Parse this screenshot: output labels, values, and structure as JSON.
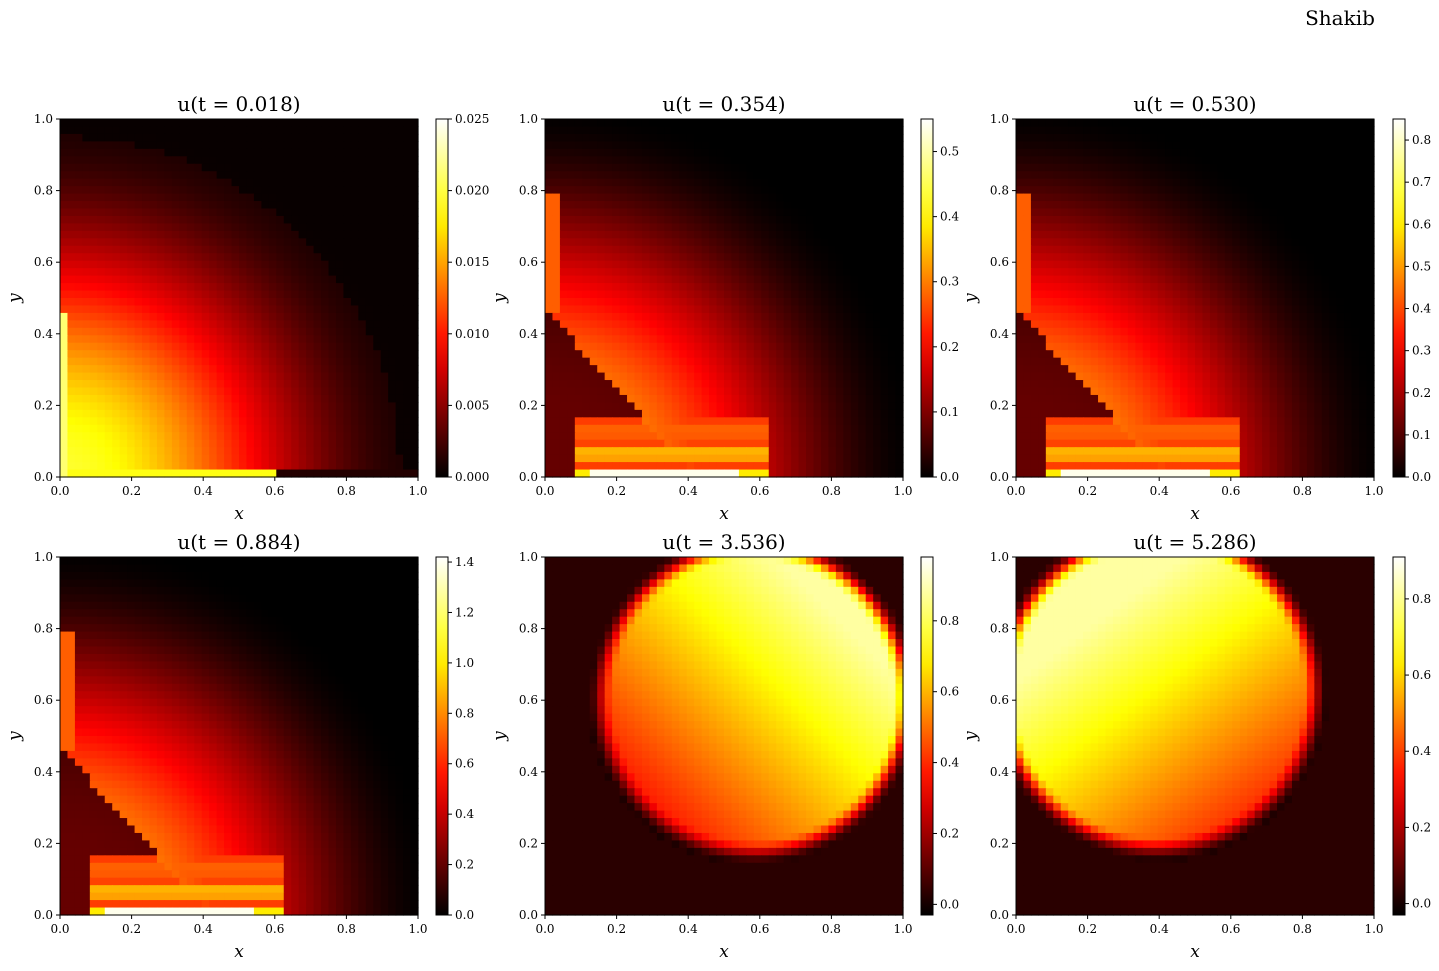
{
  "figure": {
    "author_label": "Shakib"
  },
  "chart_data": [
    {
      "type": "heatmap",
      "title": "u(t = 0.018)",
      "xlabel": "x",
      "ylabel": "y",
      "xlim": [
        0,
        1
      ],
      "ylim": [
        0,
        1
      ],
      "xticks": [
        "0.0",
        "0.2",
        "0.4",
        "0.6",
        "0.8",
        "1.0"
      ],
      "yticks": [
        "0.0",
        "0.2",
        "0.4",
        "0.6",
        "0.8",
        "1.0"
      ],
      "colormap": "hot",
      "colorbar": {
        "min": 0.0,
        "max": 0.025,
        "ticks": [
          "0.000",
          "0.005",
          "0.010",
          "0.015",
          "0.020",
          "0.025"
        ]
      },
      "field_pattern": "corner-quarter-circle"
    },
    {
      "type": "heatmap",
      "title": "u(t = 0.354)",
      "xlabel": "x",
      "ylabel": "y",
      "xlim": [
        0,
        1
      ],
      "ylim": [
        0,
        1
      ],
      "xticks": [
        "0.0",
        "0.2",
        "0.4",
        "0.6",
        "0.8",
        "1.0"
      ],
      "yticks": [
        "0.0",
        "0.2",
        "0.4",
        "0.6",
        "0.8",
        "1.0"
      ],
      "colormap": "hot",
      "colorbar": {
        "min": 0.0,
        "max": 0.55,
        "ticks": [
          "0.0",
          "0.1",
          "0.2",
          "0.3",
          "0.4",
          "0.5"
        ]
      },
      "field_pattern": "bottom-wave-bands"
    },
    {
      "type": "heatmap",
      "title": "u(t = 0.530)",
      "xlabel": "x",
      "ylabel": "y",
      "xlim": [
        0,
        1
      ],
      "ylim": [
        0,
        1
      ],
      "xticks": [
        "0.0",
        "0.2",
        "0.4",
        "0.6",
        "0.8",
        "1.0"
      ],
      "yticks": [
        "0.0",
        "0.2",
        "0.4",
        "0.6",
        "0.8",
        "1.0"
      ],
      "colormap": "hot",
      "colorbar": {
        "min": 0.0,
        "max": 0.85,
        "ticks": [
          "0.0",
          "0.1",
          "0.2",
          "0.3",
          "0.4",
          "0.5",
          "0.6",
          "0.7",
          "0.8"
        ]
      },
      "field_pattern": "bottom-wave-bands"
    },
    {
      "type": "heatmap",
      "title": "u(t = 0.884)",
      "xlabel": "x",
      "ylabel": "y",
      "xlim": [
        0,
        1
      ],
      "ylim": [
        0,
        1
      ],
      "xticks": [
        "0.0",
        "0.2",
        "0.4",
        "0.6",
        "0.8",
        "1.0"
      ],
      "yticks": [
        "0.0",
        "0.2",
        "0.4",
        "0.6",
        "0.8",
        "1.0"
      ],
      "colormap": "hot",
      "colorbar": {
        "min": 0.0,
        "max": 1.42,
        "ticks": [
          "0.0",
          "0.2",
          "0.4",
          "0.6",
          "0.8",
          "1.0",
          "1.2",
          "1.4"
        ]
      },
      "field_pattern": "bottom-wave-bands"
    },
    {
      "type": "heatmap",
      "title": "u(t = 3.536)",
      "xlabel": "x",
      "ylabel": "y",
      "xlim": [
        0,
        1
      ],
      "ylim": [
        0,
        1
      ],
      "xticks": [
        "0.0",
        "0.2",
        "0.4",
        "0.6",
        "0.8",
        "1.0"
      ],
      "yticks": [
        "0.0",
        "0.2",
        "0.4",
        "0.6",
        "0.8",
        "1.0"
      ],
      "colormap": "hot",
      "colorbar": {
        "min": -0.03,
        "max": 0.98,
        "ticks": [
          "0.0",
          "0.2",
          "0.4",
          "0.6",
          "0.8"
        ]
      },
      "field_pattern": "disc-bright-upper-right"
    },
    {
      "type": "heatmap",
      "title": "u(t = 5.286)",
      "xlabel": "x",
      "ylabel": "y",
      "xlim": [
        0,
        1
      ],
      "ylim": [
        0,
        1
      ],
      "xticks": [
        "0.0",
        "0.2",
        "0.4",
        "0.6",
        "0.8",
        "1.0"
      ],
      "yticks": [
        "0.0",
        "0.2",
        "0.4",
        "0.6",
        "0.8",
        "1.0"
      ],
      "colormap": "hot",
      "colorbar": {
        "min": -0.03,
        "max": 0.91,
        "ticks": [
          "0.0",
          "0.2",
          "0.4",
          "0.6",
          "0.8"
        ]
      },
      "field_pattern": "disc-bright-upper-left"
    }
  ]
}
